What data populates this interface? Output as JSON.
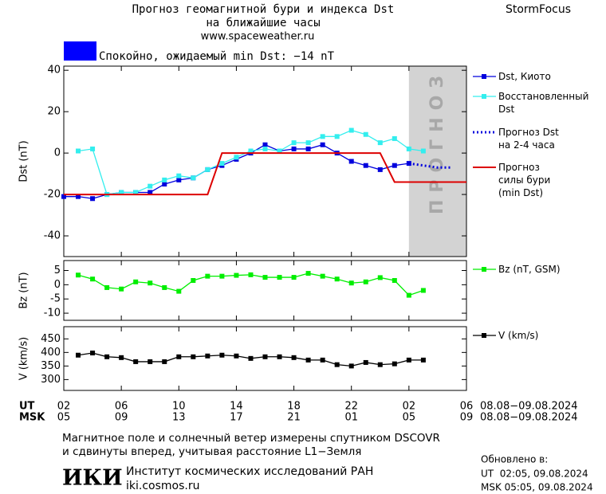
{
  "header": {
    "title_line1": "Прогноз геомагнитной бури и индекса Dst",
    "title_line2": "на ближайшие часы",
    "website": "www.spaceweather.ru",
    "brand": "StormFocus",
    "status": "Спокойно, ожидаемый min Dst: −14 nT",
    "status_color": "#0000ff"
  },
  "chart_data": [
    {
      "type": "line",
      "y_label": "Dst (nT)",
      "xlim": [
        0,
        28
      ],
      "ylim": [
        -50,
        42
      ],
      "yticks": [
        40,
        20,
        0,
        -20,
        -40
      ],
      "xticks": [
        0,
        4,
        8,
        12,
        16,
        20,
        24,
        28
      ],
      "forecast_band": {
        "label": "ПРОГНОЗ",
        "x": [
          24,
          28
        ],
        "color": "#d3d3d3"
      },
      "series": [
        {
          "name": "Dst, Киото",
          "color": "#0000dd",
          "style": "markers",
          "x": [
            0,
            1,
            2,
            3,
            4,
            5,
            6,
            7,
            8,
            9,
            10,
            11,
            12,
            13,
            14,
            15,
            16,
            17,
            18,
            19,
            20,
            21,
            22,
            23,
            24
          ],
          "values": [
            -21,
            -21,
            -22,
            -20,
            -19,
            -19,
            -19,
            -15,
            -13,
            -12,
            -8,
            -6,
            -3,
            0,
            4,
            1,
            2,
            2,
            4,
            0,
            -4,
            -6,
            -8,
            -6,
            -5
          ]
        },
        {
          "name": "Восстановленный\nDst",
          "color": "#33eeee",
          "style": "markers",
          "x": [
            1,
            2,
            3,
            4,
            5,
            6,
            7,
            8,
            9,
            10,
            11,
            12,
            13,
            14,
            15,
            16,
            17,
            18,
            19,
            20,
            21,
            22,
            23,
            24,
            25
          ],
          "values": [
            1,
            2,
            -20,
            -19,
            -19,
            -16,
            -13,
            -11,
            -12,
            -8,
            -5,
            -2,
            1,
            2,
            1,
            5,
            5,
            8,
            8,
            11,
            9,
            5,
            7,
            2,
            1
          ]
        },
        {
          "name": "Прогноз Dst\nна 2-4 часа",
          "color": "#0000dd",
          "style": "dotted",
          "x": [
            24,
            25,
            26,
            27
          ],
          "values": [
            -5,
            -6,
            -7,
            -7
          ]
        },
        {
          "name": "Прогноз\nсилы бури\n(min Dst)",
          "color": "#dd0000",
          "style": "line",
          "x": [
            0,
            10,
            11,
            21,
            22,
            23,
            28
          ],
          "values": [
            -20,
            -20,
            0,
            0,
            0,
            -14,
            -14
          ]
        }
      ]
    },
    {
      "type": "line",
      "y_label": "Bz (nT)",
      "xlim": [
        0,
        28
      ],
      "ylim": [
        -12.5,
        8.5
      ],
      "yticks": [
        5,
        0,
        -5,
        -10
      ],
      "xticks": [
        0,
        4,
        8,
        12,
        16,
        20,
        24,
        28
      ],
      "series": [
        {
          "name": "Bz (nT, GSM)",
          "color": "#00ee00",
          "style": "markers",
          "x": [
            1,
            2,
            3,
            4,
            5,
            6,
            7,
            8,
            9,
            10,
            11,
            12,
            13,
            14,
            15,
            16,
            17,
            18,
            19,
            20,
            21,
            22,
            23,
            24,
            25
          ],
          "values": [
            3.4,
            2,
            -1,
            -1.5,
            1,
            0.6,
            -1,
            -2.3,
            1.5,
            3,
            3,
            3.3,
            3.5,
            2.6,
            2.6,
            2.6,
            4,
            3,
            2,
            0.6,
            1,
            2.5,
            1.5,
            -3.7,
            -2
          ]
        }
      ]
    },
    {
      "type": "line",
      "y_label": "V (km/s)",
      "xlim": [
        0,
        28
      ],
      "ylim": [
        260,
        495
      ],
      "yticks": [
        450,
        400,
        350,
        300
      ],
      "x_label": "UT",
      "x2_label": "MSK",
      "date_range_ut": "08.08−09.08.2024",
      "date_range_msk": "08.08−09.08.2024",
      "xticks": [
        {
          "value": 0,
          "label": "02"
        },
        {
          "value": 4,
          "label": "06"
        },
        {
          "value": 8,
          "label": "10"
        },
        {
          "value": 12,
          "label": "14"
        },
        {
          "value": 16,
          "label": "18"
        },
        {
          "value": 20,
          "label": "22"
        },
        {
          "value": 24,
          "label": "02"
        },
        {
          "value": 28,
          "label": "06"
        }
      ],
      "x2ticks": [
        {
          "value": 0,
          "label": "05"
        },
        {
          "value": 4,
          "label": "09"
        },
        {
          "value": 8,
          "label": "13"
        },
        {
          "value": 12,
          "label": "17"
        },
        {
          "value": 16,
          "label": "21"
        },
        {
          "value": 20,
          "label": "01"
        },
        {
          "value": 24,
          "label": "05"
        },
        {
          "value": 28,
          "label": "09"
        }
      ],
      "series": [
        {
          "name": "V (km/s)",
          "color": "#000000",
          "style": "markers",
          "x": [
            1,
            2,
            3,
            4,
            5,
            6,
            7,
            8,
            9,
            10,
            11,
            12,
            13,
            14,
            15,
            16,
            17,
            18,
            19,
            20,
            21,
            22,
            23,
            24,
            25
          ],
          "values": [
            390,
            398,
            384,
            381,
            366,
            366,
            366,
            384,
            384,
            387,
            390,
            387,
            378,
            384,
            384,
            381,
            372,
            372,
            355,
            350,
            363,
            355,
            358,
            372,
            372
          ]
        }
      ]
    }
  ],
  "footer": {
    "note_line1": "Магнитное поле и солнечный ветер измерены спутником DSCOVR",
    "note_line2": "и сдвинуты вперед, учитывая расстояние L1−Земля",
    "logo": "ИКИ",
    "institute": "Институт космических исследований РАН",
    "institute_url": "iki.cosmos.ru",
    "updated_label": "Обновлено в:",
    "updated_ut": "UT  02:05, 09.08.2024",
    "updated_msk": "MSK 05:05, 09.08.2024"
  }
}
